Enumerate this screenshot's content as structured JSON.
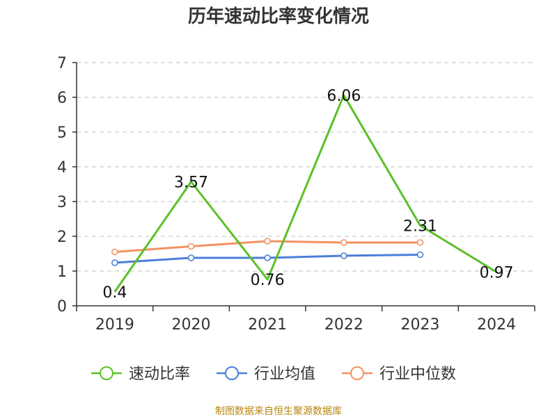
{
  "chart_data": {
    "type": "line",
    "title": "历年速动比率变化情况",
    "categories": [
      "2019",
      "2020",
      "2021",
      "2022",
      "2023",
      "2024"
    ],
    "ylim": [
      0,
      7
    ],
    "yticks": [
      0,
      1,
      2,
      3,
      4,
      5,
      6,
      7
    ],
    "grid": true,
    "legend_position": "bottom",
    "series": [
      {
        "name": "速动比率",
        "color": "#5bc027",
        "values": [
          0.4,
          3.57,
          0.76,
          6.06,
          2.31,
          0.97
        ],
        "show_labels": true,
        "markers": false
      },
      {
        "name": "行业均值",
        "color": "#4a7fdb",
        "values": [
          1.24,
          1.38,
          1.38,
          1.44,
          1.47,
          null
        ],
        "show_labels": false,
        "markers": true
      },
      {
        "name": "行业中位数",
        "color": "#f39262",
        "values": [
          1.55,
          1.71,
          1.86,
          1.82,
          1.82,
          null
        ],
        "show_labels": false,
        "markers": true
      }
    ]
  },
  "source_text": "制图数据来自恒生聚源数据库"
}
